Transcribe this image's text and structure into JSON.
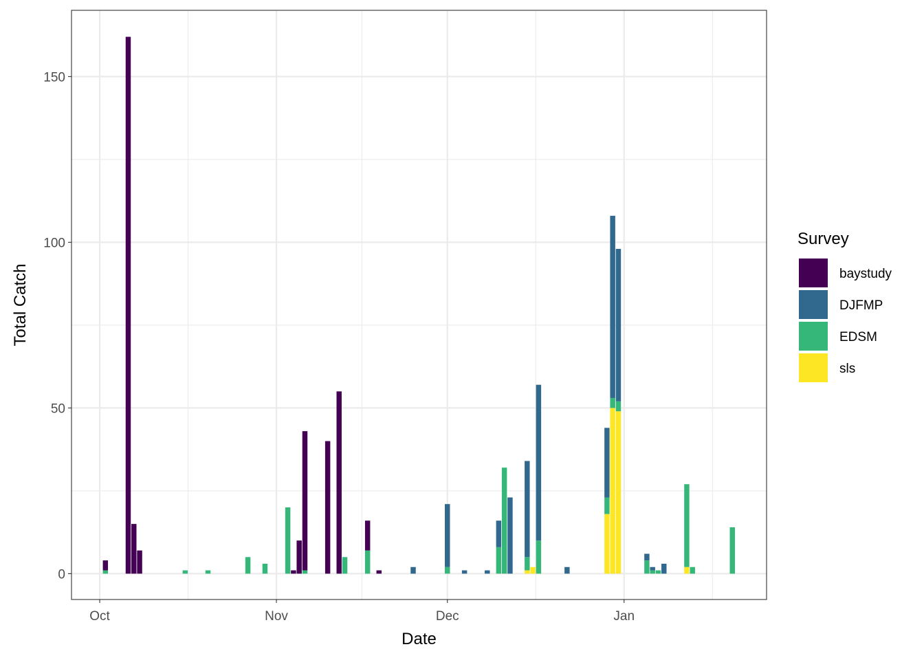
{
  "chart_data": {
    "type": "bar",
    "stacked": true,
    "title": "",
    "xlabel": "Date",
    "ylabel": "Total Catch",
    "x_ticks": [
      {
        "label": "Oct",
        "day": 0
      },
      {
        "label": "Nov",
        "day": 31
      },
      {
        "label": "Dec",
        "day": 61
      },
      {
        "label": "Jan",
        "day": 92
      }
    ],
    "x_minor_gridlines_days": [
      15.5,
      46,
      76.5,
      107.5
    ],
    "x_range_days": [
      -4.95,
      117
    ],
    "x_origin_note": "day 0 = Oct 1",
    "y_ticks": [
      0,
      50,
      100,
      150
    ],
    "y_minor_gridlines": [
      25,
      75,
      125
    ],
    "ylim": [
      -7.8,
      170
    ],
    "grid": true,
    "legend": {
      "title": "Survey",
      "position": "right",
      "entries": [
        {
          "name": "baystudy",
          "color": "#440154"
        },
        {
          "name": "DJFMP",
          "color": "#31688E"
        },
        {
          "name": "EDSM",
          "color": "#35B779"
        },
        {
          "name": "sls",
          "color": "#FDE725"
        }
      ]
    },
    "stack_order_bottom_to_top": [
      "sls",
      "EDSM",
      "DJFMP",
      "baystudy"
    ],
    "bars": [
      {
        "day": 1,
        "baystudy": 3,
        "DJFMP": 0,
        "EDSM": 1,
        "sls": 0
      },
      {
        "day": 5,
        "baystudy": 162,
        "DJFMP": 0,
        "EDSM": 0,
        "sls": 0
      },
      {
        "day": 6,
        "baystudy": 15,
        "DJFMP": 0,
        "EDSM": 0,
        "sls": 0
      },
      {
        "day": 7,
        "baystudy": 7,
        "DJFMP": 0,
        "EDSM": 0,
        "sls": 0
      },
      {
        "day": 15,
        "baystudy": 0,
        "DJFMP": 0,
        "EDSM": 1,
        "sls": 0
      },
      {
        "day": 19,
        "baystudy": 0,
        "DJFMP": 0,
        "EDSM": 1,
        "sls": 0
      },
      {
        "day": 26,
        "baystudy": 0,
        "DJFMP": 0,
        "EDSM": 5,
        "sls": 0
      },
      {
        "day": 29,
        "baystudy": 0,
        "DJFMP": 0,
        "EDSM": 3,
        "sls": 0
      },
      {
        "day": 33,
        "baystudy": 0,
        "DJFMP": 0,
        "EDSM": 20,
        "sls": 0
      },
      {
        "day": 34,
        "baystudy": 1,
        "DJFMP": 0,
        "EDSM": 0,
        "sls": 0
      },
      {
        "day": 35,
        "baystudy": 10,
        "DJFMP": 0,
        "EDSM": 0,
        "sls": 0
      },
      {
        "day": 36,
        "baystudy": 42,
        "DJFMP": 0,
        "EDSM": 1,
        "sls": 0
      },
      {
        "day": 40,
        "baystudy": 40,
        "DJFMP": 0,
        "EDSM": 0,
        "sls": 0
      },
      {
        "day": 42,
        "baystudy": 55,
        "DJFMP": 0,
        "EDSM": 0,
        "sls": 0
      },
      {
        "day": 43,
        "baystudy": 0,
        "DJFMP": 0,
        "EDSM": 5,
        "sls": 0
      },
      {
        "day": 47,
        "baystudy": 9,
        "DJFMP": 0,
        "EDSM": 7,
        "sls": 0
      },
      {
        "day": 49,
        "baystudy": 1,
        "DJFMP": 0,
        "EDSM": 0,
        "sls": 0
      },
      {
        "day": 55,
        "baystudy": 0,
        "DJFMP": 2,
        "EDSM": 0,
        "sls": 0
      },
      {
        "day": 61,
        "baystudy": 0,
        "DJFMP": 19,
        "EDSM": 2,
        "sls": 0
      },
      {
        "day": 64,
        "baystudy": 0,
        "DJFMP": 1,
        "EDSM": 0,
        "sls": 0
      },
      {
        "day": 68,
        "baystudy": 0,
        "DJFMP": 1,
        "EDSM": 0,
        "sls": 0
      },
      {
        "day": 70,
        "baystudy": 0,
        "DJFMP": 8,
        "EDSM": 8,
        "sls": 0
      },
      {
        "day": 71,
        "baystudy": 0,
        "DJFMP": 0,
        "EDSM": 32,
        "sls": 0
      },
      {
        "day": 72,
        "baystudy": 0,
        "DJFMP": 23,
        "EDSM": 0,
        "sls": 0
      },
      {
        "day": 75,
        "baystudy": 0,
        "DJFMP": 29,
        "EDSM": 4,
        "sls": 1
      },
      {
        "day": 76,
        "baystudy": 0,
        "DJFMP": 0,
        "EDSM": 0,
        "sls": 2
      },
      {
        "day": 77,
        "baystudy": 0,
        "DJFMP": 47,
        "EDSM": 10,
        "sls": 0
      },
      {
        "day": 82,
        "baystudy": 0,
        "DJFMP": 2,
        "EDSM": 0,
        "sls": 0
      },
      {
        "day": 89,
        "baystudy": 0,
        "DJFMP": 21,
        "EDSM": 5,
        "sls": 18
      },
      {
        "day": 90,
        "baystudy": 0,
        "DJFMP": 55,
        "EDSM": 3,
        "sls": 50
      },
      {
        "day": 91,
        "baystudy": 0,
        "DJFMP": 46,
        "EDSM": 3,
        "sls": 49
      },
      {
        "day": 96,
        "baystudy": 0,
        "DJFMP": 2,
        "EDSM": 4,
        "sls": 0
      },
      {
        "day": 97,
        "baystudy": 0,
        "DJFMP": 1,
        "EDSM": 1,
        "sls": 0
      },
      {
        "day": 98,
        "baystudy": 0,
        "DJFMP": 0,
        "EDSM": 1,
        "sls": 0
      },
      {
        "day": 99,
        "baystudy": 0,
        "DJFMP": 3,
        "EDSM": 0,
        "sls": 0
      },
      {
        "day": 103,
        "baystudy": 0,
        "DJFMP": 0,
        "EDSM": 25,
        "sls": 2
      },
      {
        "day": 104,
        "baystudy": 0,
        "DJFMP": 0,
        "EDSM": 2,
        "sls": 0
      },
      {
        "day": 111,
        "baystudy": 0,
        "DJFMP": 0,
        "EDSM": 14,
        "sls": 0
      }
    ]
  }
}
